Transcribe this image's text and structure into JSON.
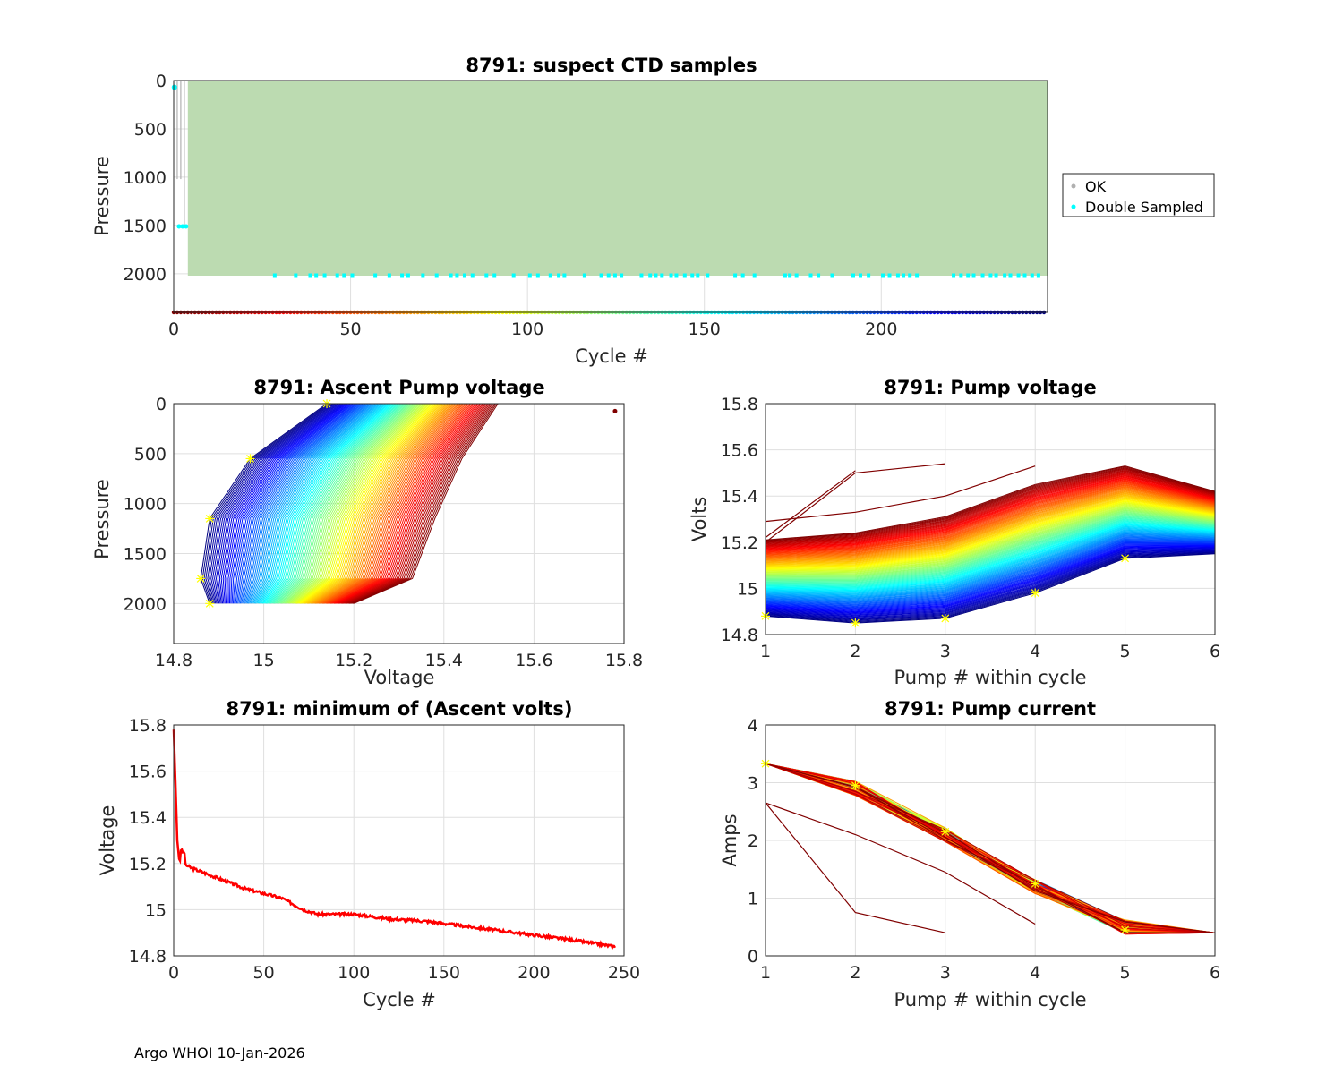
{
  "footer": "Argo WHOI 10-Jan-2026",
  "colors": {
    "ok": "#b0b0b0",
    "ok_fill": "#bcdbb1",
    "double": "#00ffff",
    "min_line": "#ff0000",
    "star": "#ffff00"
  },
  "chart_data": [
    {
      "id": "p1",
      "type": "scatter",
      "title": "8791: suspect CTD samples",
      "xlabel": "Cycle #",
      "ylabel": "Pressure",
      "xlim": [
        0,
        247
      ],
      "ylim": [
        2400,
        0
      ],
      "xticks": [
        "0",
        "50",
        "100",
        "150",
        "200"
      ],
      "yticks": [
        "0",
        "500",
        "1000",
        "1500",
        "2000"
      ],
      "legend": {
        "position": "outside-right",
        "ok": "OK",
        "double": "Double Sampled"
      },
      "ok_region": {
        "cycles": [
          4,
          247
        ],
        "pressure": [
          0,
          2020
        ]
      },
      "double_sampled_pressure": 2020,
      "surface_flag_pressure": 2400,
      "grid": true
    },
    {
      "id": "p2",
      "type": "line",
      "title": "8791: Ascent Pump voltage",
      "xlabel": "Voltage",
      "ylabel": "Pressure",
      "xlim": [
        14.8,
        15.8
      ],
      "ylim": [
        2400,
        0
      ],
      "xticks": [
        "14.8",
        "15",
        "15.2",
        "15.4",
        "15.6",
        "15.8"
      ],
      "yticks": [
        "0",
        "500",
        "1000",
        "1500",
        "2000"
      ],
      "pressures": [
        2000,
        1750,
        1150,
        550,
        0
      ],
      "cycle_count": 247,
      "grid": true
    },
    {
      "id": "p3",
      "type": "line",
      "title": "8791: Pump voltage",
      "xlabel": "Pump # within cycle",
      "ylabel": "Volts",
      "xlim": [
        1,
        6
      ],
      "ylim": [
        14.8,
        15.8
      ],
      "xticks": [
        "1",
        "2",
        "3",
        "4",
        "5",
        "6"
      ],
      "yticks": [
        "14.8",
        "15",
        "15.2",
        "15.4",
        "15.6",
        "15.8"
      ],
      "newest_cycle_volts": [
        14.88,
        14.85,
        14.87,
        14.98,
        15.13
      ],
      "oldest_cycle_volts": [
        15.21,
        15.24,
        15.31,
        15.45,
        15.53
      ],
      "grid": true
    },
    {
      "id": "p4",
      "type": "line",
      "title": "8791: minimum of (Ascent volts)",
      "xlabel": "Cycle #",
      "ylabel": "Voltage",
      "xlim": [
        0,
        250
      ],
      "ylim": [
        14.8,
        15.8
      ],
      "xticks": [
        "0",
        "50",
        "100",
        "150",
        "200",
        "250"
      ],
      "yticks": [
        "14.8",
        "15",
        "15.2",
        "15.4",
        "15.6",
        "15.8"
      ],
      "x": [
        0,
        1,
        2,
        3,
        5,
        10,
        20,
        40,
        60,
        72,
        80,
        100,
        120,
        140,
        160,
        180,
        200,
        220,
        245
      ],
      "y": [
        15.78,
        15.55,
        15.3,
        15.22,
        15.2,
        15.18,
        15.15,
        15.09,
        15.05,
        15.0,
        14.98,
        14.98,
        14.96,
        14.95,
        14.93,
        14.91,
        14.89,
        14.87,
        14.84
      ],
      "grid": true
    },
    {
      "id": "p5",
      "type": "line",
      "title": "8791: Pump current",
      "xlabel": "Pump # within cycle",
      "ylabel": "Amps",
      "xlim": [
        1,
        6
      ],
      "ylim": [
        0,
        4
      ],
      "xticks": [
        "1",
        "2",
        "3",
        "4",
        "5",
        "6"
      ],
      "yticks": [
        "0",
        "1",
        "2",
        "3",
        "4"
      ],
      "typical_amps": [
        3.33,
        2.9,
        2.1,
        1.2,
        0.5,
        0.4
      ],
      "outlier_amps_a": [
        2.65,
        0.75,
        0.4
      ],
      "outlier_amps_b": [
        2.65,
        2.1,
        1.45,
        0.55
      ],
      "grid": true
    }
  ]
}
